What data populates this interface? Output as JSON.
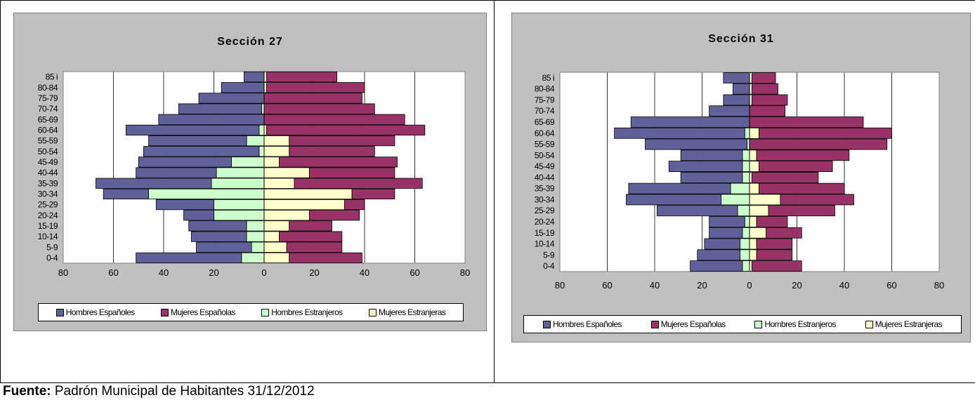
{
  "colors": {
    "hombres_espanoles": "#616199",
    "mujeres_espanolas": "#993366",
    "hombres_extranjeros": "#ccffcc",
    "mujeres_extranjeras": "#ffffcc",
    "plot_bg": "#ffffff",
    "frame_bg": "#c0c0c0"
  },
  "legend": {
    "hombres_espanoles": "Hombres Españoles",
    "mujeres_espanolas": "Mujeres Españolas",
    "hombres_extranjeros": "Hombres Estranjeros",
    "mujeres_extranjeras": "Mujeres Estranjeras"
  },
  "footer": {
    "label": "Fuente:",
    "text": " Padrón Municipal de Habitantes 31/12/2012"
  },
  "chart_data": [
    {
      "type": "bar",
      "orientation": "horizontal-pyramid",
      "title": "Sección 27",
      "categories": [
        "0-4",
        "5-9",
        "10-14",
        "15-19",
        "20-24",
        "25-29",
        "30-34",
        "35-39",
        "40-44",
        "45-49",
        "50-54",
        "55-59",
        "60-64",
        "65-69",
        "70-74",
        "75-79",
        "80-84",
        "85 i"
      ],
      "xlim": [
        -80,
        80
      ],
      "xticks": [
        -80,
        -60,
        -40,
        -20,
        0,
        20,
        40,
        60,
        80
      ],
      "xtick_labels": [
        "80",
        "60",
        "40",
        "20",
        "0",
        "20",
        "40",
        "60",
        "80"
      ],
      "grid": true,
      "legend_position": "bottom",
      "series": [
        {
          "name": "Hombres Españoles",
          "key": "hombres_espanoles",
          "side": "left",
          "values": [
            42,
            22,
            22,
            23,
            12,
            23,
            18,
            46,
            32,
            37,
            46,
            39,
            53,
            42,
            33,
            26,
            17,
            8
          ]
        },
        {
          "name": "Hombres Estranjeros",
          "key": "hombres_extranjeros",
          "side": "left",
          "values": [
            9,
            5,
            7,
            7,
            20,
            20,
            46,
            21,
            19,
            13,
            2,
            7,
            2,
            0,
            1,
            0,
            0,
            0
          ]
        },
        {
          "name": "Mujeres Españolas",
          "key": "mujeres_espanolas",
          "side": "right",
          "values": [
            29,
            22,
            25,
            17,
            20,
            8,
            17,
            51,
            34,
            47,
            34,
            42,
            63,
            56,
            44,
            39,
            39,
            28
          ]
        },
        {
          "name": "Mujeres Estranjeras",
          "key": "mujeres_extranjeras",
          "side": "right",
          "values": [
            10,
            9,
            6,
            10,
            18,
            32,
            35,
            12,
            18,
            6,
            10,
            10,
            1,
            0,
            0,
            0,
            1,
            1
          ]
        }
      ]
    },
    {
      "type": "bar",
      "orientation": "horizontal-pyramid",
      "title": "Sección 31",
      "categories": [
        "0-4",
        "5-9",
        "10-14",
        "15-19",
        "20-24",
        "25-29",
        "30-34",
        "35-39",
        "40-44",
        "45-49",
        "50-54",
        "55-59",
        "60-64",
        "65-69",
        "70-74",
        "75-79",
        "80-84",
        "85 i"
      ],
      "xlim": [
        -80,
        80
      ],
      "xticks": [
        -80,
        -60,
        -40,
        -20,
        0,
        20,
        40,
        60,
        80
      ],
      "xtick_labels": [
        "80",
        "60",
        "40",
        "20",
        "0",
        "20",
        "40",
        "60",
        "80"
      ],
      "grid": true,
      "legend_position": "bottom",
      "series": [
        {
          "name": "Hombres Españoles",
          "key": "hombres_espanoles",
          "side": "left",
          "values": [
            22,
            18,
            15,
            14,
            15,
            34,
            40,
            43,
            26,
            31,
            26,
            43,
            55,
            50,
            17,
            11,
            7,
            11
          ]
        },
        {
          "name": "Hombres Estranjeros",
          "key": "hombres_extranjeros",
          "side": "left",
          "values": [
            3,
            4,
            4,
            3,
            2,
            5,
            12,
            8,
            3,
            3,
            3,
            1,
            2,
            0,
            0,
            0,
            0,
            0
          ]
        },
        {
          "name": "Mujeres Españolas",
          "key": "mujeres_espanolas",
          "side": "right",
          "values": [
            21,
            15,
            15,
            15,
            13,
            28,
            31,
            36,
            28,
            31,
            39,
            58,
            56,
            48,
            15,
            15,
            11,
            10
          ]
        },
        {
          "name": "Mujeres Estranjeras",
          "key": "mujeres_extranjeras",
          "side": "right",
          "values": [
            1,
            3,
            3,
            7,
            3,
            8,
            13,
            4,
            1,
            4,
            3,
            0,
            4,
            0,
            0,
            1,
            1,
            1
          ]
        }
      ]
    }
  ]
}
